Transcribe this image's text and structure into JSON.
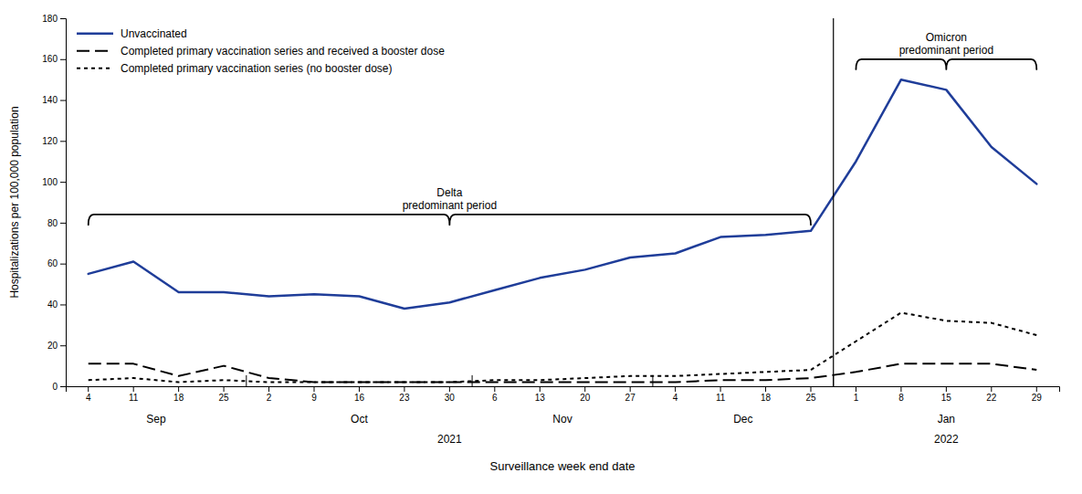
{
  "chart_data": {
    "type": "line",
    "categories": [
      "4",
      "11",
      "18",
      "25",
      "2",
      "9",
      "16",
      "23",
      "30",
      "6",
      "13",
      "20",
      "27",
      "4",
      "11",
      "18",
      "25",
      "1",
      "8",
      "15",
      "22",
      "29"
    ],
    "series": [
      {
        "name": "Unvaccinated",
        "color": "#1f3d99",
        "line_style": "solid",
        "values": [
          55,
          61,
          46,
          46,
          44,
          45,
          44,
          38,
          41,
          47,
          53,
          57,
          63,
          65,
          73,
          74,
          76,
          110,
          150,
          145,
          117,
          99
        ]
      },
      {
        "name": "Completed primary vaccination series and received a booster dose",
        "color": "#000000",
        "line_style": "dashed",
        "values": [
          11,
          11,
          5,
          10,
          4,
          2,
          2,
          2,
          2,
          2,
          2,
          2,
          2,
          2,
          3,
          3,
          4,
          7,
          11,
          11,
          11,
          8
        ]
      },
      {
        "name": "Completed primary vaccination series (no booster dose)",
        "color": "#000000",
        "line_style": "dotted",
        "values": [
          3,
          4,
          2,
          3,
          2,
          2,
          2,
          2,
          2,
          3,
          3,
          4,
          5,
          5,
          6,
          7,
          8,
          22,
          36,
          32,
          31,
          25
        ]
      }
    ],
    "xlabel": "Surveillance week end date",
    "ylabel": "Hospitalizations per 100,000 population",
    "ylim": [
      0,
      180
    ],
    "yticks": [
      0,
      20,
      40,
      60,
      80,
      100,
      120,
      140,
      160,
      180
    ],
    "grid": false,
    "legend": "upper left",
    "x_groups": [
      {
        "label": "Sep",
        "from": 0,
        "to": 3
      },
      {
        "label": "Oct",
        "from": 4,
        "to": 8
      },
      {
        "label": "Nov",
        "from": 9,
        "to": 12
      },
      {
        "label": "Dec",
        "from": 13,
        "to": 16
      },
      {
        "label": "Jan",
        "from": 17,
        "to": 21
      }
    ],
    "x_outer_groups": [
      {
        "label": "2021",
        "from": 0,
        "to": 16
      },
      {
        "label": "2022",
        "from": 17,
        "to": 21
      }
    ],
    "annotations": [
      {
        "text": "Delta\npredominant period",
        "from": 0,
        "to": 16,
        "y": 84
      },
      {
        "text": "Omicron\npredominant period",
        "from": 17,
        "to": 21,
        "y": 160
      }
    ]
  }
}
